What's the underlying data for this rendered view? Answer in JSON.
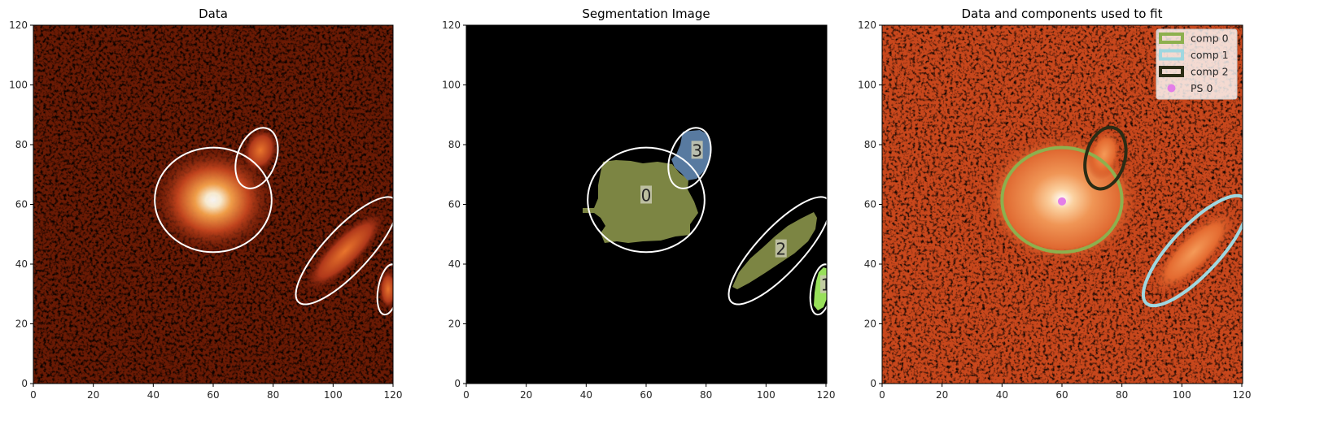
{
  "chart_data": [
    {
      "type": "heatmap",
      "title": "Data",
      "xlim": [
        0,
        120
      ],
      "ylim": [
        0,
        120
      ],
      "xticks": [
        0,
        20,
        40,
        60,
        80,
        100,
        120
      ],
      "yticks": [
        0,
        20,
        40,
        60,
        80,
        100,
        120
      ],
      "colormap": "gist_heat",
      "ellipse_color": "#ffffff",
      "ellipses": [
        {
          "cx": 60,
          "cy": 61.5,
          "a": 19.5,
          "b": 17.5,
          "angle": 0
        },
        {
          "cx": 74.5,
          "cy": 75.5,
          "a": 10.5,
          "b": 6.5,
          "angle": 70
        },
        {
          "cx": 104.5,
          "cy": 44.5,
          "a": 23.5,
          "b": 7.5,
          "angle": 47
        },
        {
          "cx": 118.5,
          "cy": 31.5,
          "a": 8.5,
          "b": 3.5,
          "angle": 80
        }
      ]
    },
    {
      "type": "heatmap",
      "title": "Segmentation Image",
      "xlim": [
        0,
        120
      ],
      "ylim": [
        0,
        120
      ],
      "xticks": [
        0,
        20,
        40,
        60,
        80,
        100,
        120
      ],
      "yticks": [
        0,
        20,
        40,
        60,
        80,
        100,
        120
      ],
      "background_color": "#000000",
      "ellipse_color": "#ffffff",
      "segments": [
        {
          "label": "0",
          "color": "#7c8543",
          "cx": 60,
          "cy": 61,
          "label_x": 60,
          "label_y": 63
        },
        {
          "label": "1",
          "color": "#98e05a",
          "cx": 118.5,
          "cy": 31.5,
          "label_x": 120,
          "label_y": 33
        },
        {
          "label": "2",
          "color": "#7c8543",
          "cx": 104.5,
          "cy": 44.5,
          "label_x": 105,
          "label_y": 45
        },
        {
          "label": "3",
          "color": "#587aa0",
          "cx": 76.5,
          "cy": 77,
          "label_x": 77,
          "label_y": 78
        }
      ],
      "ellipses": [
        {
          "cx": 60,
          "cy": 61.5,
          "a": 19.5,
          "b": 17.5,
          "angle": 0
        },
        {
          "cx": 74.5,
          "cy": 75.5,
          "a": 10.5,
          "b": 6.5,
          "angle": 70
        },
        {
          "cx": 104.5,
          "cy": 44.5,
          "a": 23.5,
          "b": 7.5,
          "angle": 47
        },
        {
          "cx": 118.5,
          "cy": 31.5,
          "a": 8.5,
          "b": 3.5,
          "angle": 80
        }
      ]
    },
    {
      "type": "heatmap",
      "title": "Data and components used to fit",
      "xlim": [
        0,
        120
      ],
      "ylim": [
        0,
        120
      ],
      "xticks": [
        0,
        20,
        40,
        60,
        80,
        100,
        120
      ],
      "yticks": [
        0,
        20,
        40,
        60,
        80,
        100,
        120
      ],
      "colormap": "gist_heat",
      "legend_position": "top-right",
      "components": [
        {
          "name": "comp 0",
          "color": "#8db04e",
          "cx": 60,
          "cy": 61.5,
          "a": 20,
          "b": 17.5,
          "angle": 0
        },
        {
          "name": "comp 1",
          "color": "#9fd7e0",
          "cx": 104.5,
          "cy": 44.5,
          "a": 24,
          "b": 8,
          "angle": 47
        },
        {
          "name": "comp 2",
          "color": "#2a2c15",
          "cx": 74.5,
          "cy": 75.5,
          "a": 10.5,
          "b": 6.5,
          "angle": 75
        }
      ],
      "point_sources": [
        {
          "name": "PS 0",
          "color": "#e37ee8",
          "x": 60,
          "y": 61
        }
      ]
    }
  ]
}
